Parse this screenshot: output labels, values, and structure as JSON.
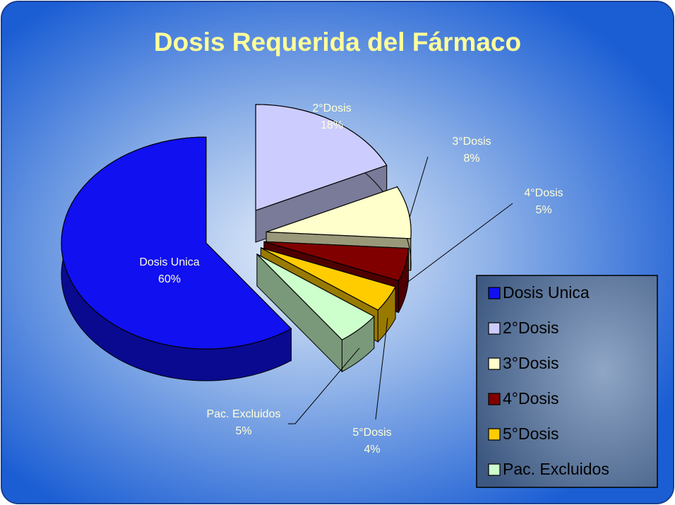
{
  "chart_data": {
    "type": "pie",
    "title": "Dosis Requerida del Fármaco",
    "categories": [
      "Dosis Unica",
      "2°Dosis",
      "3°Dosis",
      "4°Dosis",
      "5°Dosis",
      "Pac. Excluidos"
    ],
    "values": [
      60,
      18,
      8,
      5,
      4,
      5
    ],
    "value_labels": [
      "60%",
      "18%",
      "8%",
      "5%",
      "4%",
      "5%"
    ],
    "colors": [
      "#1010f0",
      "#ccccff",
      "#ffffcc",
      "#800000",
      "#ffcc00",
      "#ccffcc"
    ],
    "legend": "right"
  }
}
